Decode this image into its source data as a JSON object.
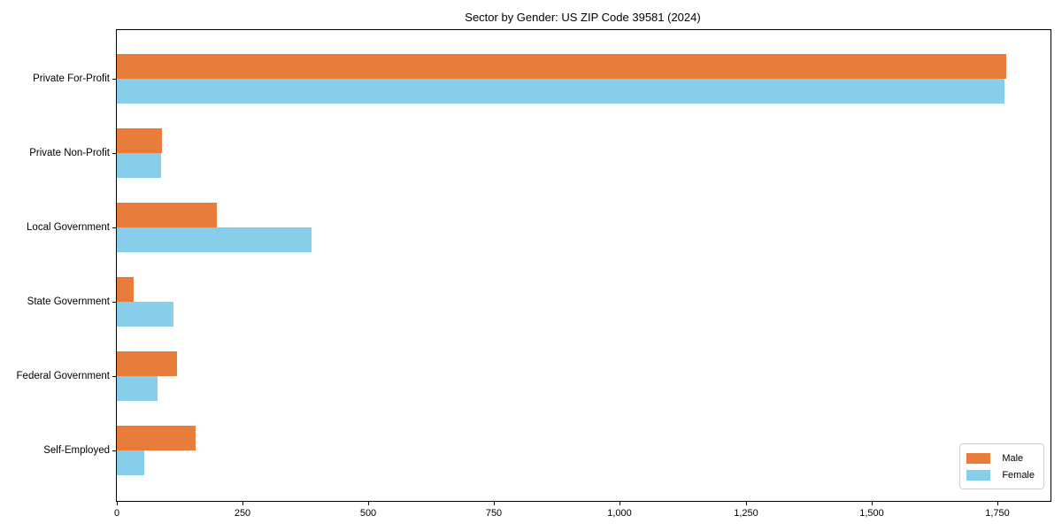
{
  "title": "Sector by Gender: US ZIP Code 39581 (2024)",
  "chart_data": {
    "type": "bar",
    "orientation": "horizontal",
    "title": "Sector by Gender: US ZIP Code 39581 (2024)",
    "xlabel": "",
    "ylabel": "",
    "grid": false,
    "legend_position": "lower right",
    "xlim": [
      0,
      1856
    ],
    "categories": [
      "Private For-Profit",
      "Private Non-Profit",
      "Local Government",
      "State Government",
      "Federal Government",
      "Self-Employed"
    ],
    "series": [
      {
        "name": "Male",
        "color": "#e87d3b",
        "values": [
          1768,
          90,
          199,
          33,
          120,
          157
        ]
      },
      {
        "name": "Female",
        "color": "#87ceeb",
        "values": [
          1764,
          88,
          387,
          113,
          81,
          55
        ]
      }
    ],
    "x_ticks": [
      {
        "value": 0,
        "label": "0"
      },
      {
        "value": 250,
        "label": "250"
      },
      {
        "value": 500,
        "label": "500"
      },
      {
        "value": 750,
        "label": "750"
      },
      {
        "value": 1000,
        "label": "1,000"
      },
      {
        "value": 1250,
        "label": "1,250"
      },
      {
        "value": 1500,
        "label": "1,500"
      },
      {
        "value": 1750,
        "label": "1,750"
      }
    ]
  }
}
